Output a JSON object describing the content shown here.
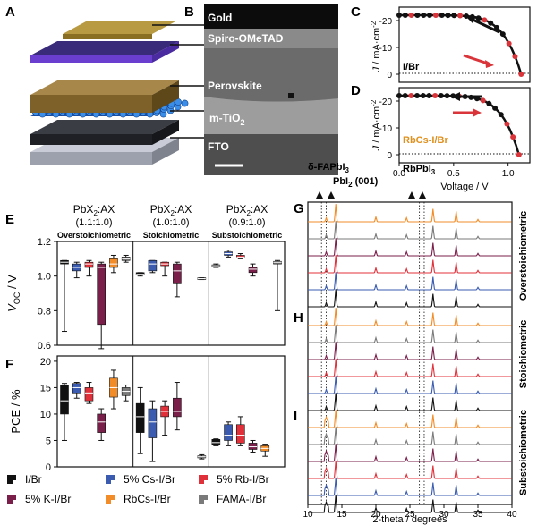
{
  "panels": {
    "A": "A",
    "B": "B",
    "C": "C",
    "D": "D",
    "E": "E",
    "F": "F",
    "G": "G",
    "H": "H",
    "I": "I"
  },
  "layers": [
    "Gold",
    "Spiro-OMeTAD",
    "Perovskite",
    "m-TiO2",
    "FTO"
  ],
  "layer_sub": {
    "base": "m-TiO",
    "sub": "2"
  },
  "colors": {
    "IBr": "#111111",
    "Cs": "#3a5bb0",
    "Rb": "#e0303a",
    "K": "#7a1f4a",
    "RbCs": "#f28c28",
    "FAMA": "#7a7a7a",
    "jv_red": "#d8343a",
    "rbcs_label": "#e0901e"
  },
  "jv": {
    "C_label": "I/Br",
    "D_label": "RbCs-I/Br",
    "ylabel": "J / mA·cm",
    "ylabel_sup": "-2",
    "xlabel": "Voltage / V",
    "yticks": [
      "-20",
      "-10",
      "0"
    ],
    "xticks": [
      "0.0",
      "0.5",
      "1.0"
    ]
  },
  "groups": {
    "ratio_prefix": "PbX",
    "ratio_sub": "2",
    "ratio_suffix": ":AX",
    "names": [
      "Overstoichiometric",
      "Stoichiometric",
      "Substoichiometric"
    ],
    "ratios": [
      "(1.1:1.0)",
      "(1.0:1.0)",
      "(0.9:1.0)"
    ]
  },
  "voc_axis": {
    "label_main": "V",
    "label_sub": "OC",
    "label_unit": " / V",
    "ticks": [
      "1.2",
      "1.0",
      "0.8",
      "0.6"
    ]
  },
  "pce_axis": {
    "label": "PCE / %",
    "ticks": [
      "20",
      "15",
      "10",
      "5",
      "0"
    ]
  },
  "legend": [
    "I/Br",
    "5% Cs-I/Br",
    "5% Rb-I/Br",
    "5% K-I/Br",
    "RbCs-I/Br",
    "FAMA-I/Br"
  ],
  "xrd": {
    "annot1": "δ-FAPbI",
    "annot1_sub": "3",
    "annot2": "PbI",
    "annot2_sub": "2",
    "annot2_tail": " (001)",
    "annot3": "RbPbI",
    "annot3_sub": "3",
    "side_labels": [
      "Overstoichiometric",
      "Stoichiometric",
      "Substoichiometric"
    ],
    "xlabel": "2-theta / degrees",
    "xticks": [
      "10",
      "15",
      "20",
      "25",
      "30",
      "35",
      "40"
    ]
  },
  "chart_data": [
    {
      "type": "box",
      "title": "",
      "ylabel": "VOC / V",
      "ylim": [
        0.6,
        1.2
      ],
      "categories": [
        "Overstoichiometric",
        "Stoichiometric",
        "Substoichiometric"
      ],
      "series": [
        {
          "name": "I/Br",
          "boxes": [
            {
              "min": 0.68,
              "q1": 1.07,
              "med": 1.08,
              "q3": 1.09,
              "max": 1.09
            },
            {
              "min": 1.0,
              "q1": 1.005,
              "med": 1.01,
              "q3": 1.02,
              "max": 1.02
            },
            {
              "min": 1.05,
              "q1": 1.055,
              "med": 1.06,
              "q3": 1.065,
              "max": 1.07
            }
          ]
        },
        {
          "name": "5% Cs-I/Br",
          "boxes": [
            {
              "min": 0.99,
              "q1": 1.03,
              "med": 1.05,
              "q3": 1.07,
              "max": 1.08
            },
            {
              "min": 1.02,
              "q1": 1.03,
              "med": 1.07,
              "q3": 1.09,
              "max": 1.09
            },
            {
              "min": 1.11,
              "q1": 1.12,
              "med": 1.13,
              "q3": 1.14,
              "max": 1.15
            }
          ]
        },
        {
          "name": "5% Rb-I/Br",
          "boxes": [
            {
              "min": 1.0,
              "q1": 1.05,
              "med": 1.07,
              "q3": 1.08,
              "max": 1.09
            },
            {
              "min": 1.0,
              "q1": 1.06,
              "med": 1.07,
              "q3": 1.08,
              "max": 1.08
            },
            {
              "min": 1.1,
              "q1": 1.105,
              "med": 1.11,
              "q3": 1.12,
              "max": 1.13
            }
          ]
        },
        {
          "name": "5% K-I/Br",
          "boxes": [
            {
              "min": 0.58,
              "q1": 0.72,
              "med": 1.05,
              "q3": 1.07,
              "max": 1.08
            },
            {
              "min": 0.88,
              "q1": 0.96,
              "med": 1.03,
              "q3": 1.07,
              "max": 1.08
            },
            {
              "min": 1.0,
              "q1": 1.02,
              "med": 1.04,
              "q3": 1.05,
              "max": 1.07
            }
          ]
        },
        {
          "name": "RbCs-I/Br",
          "boxes": [
            {
              "min": 1.02,
              "q1": 1.05,
              "med": 1.07,
              "q3": 1.1,
              "max": 1.12
            },
            null,
            null
          ]
        },
        {
          "name": "FAMA-I/Br",
          "boxes": [
            {
              "min": 1.08,
              "q1": 1.09,
              "med": 1.1,
              "q3": 1.11,
              "max": 1.12
            },
            {
              "min": 0.98,
              "q1": 0.98,
              "med": 0.985,
              "q3": 0.99,
              "max": 0.99
            },
            {
              "min": 0.8,
              "q1": 1.07,
              "med": 1.08,
              "q3": 1.085,
              "max": 1.09
            }
          ]
        }
      ]
    },
    {
      "type": "box",
      "title": "",
      "ylabel": "PCE / %",
      "ylim": [
        0,
        21
      ],
      "categories": [
        "Overstoichiometric",
        "Stoichiometric",
        "Substoichiometric"
      ],
      "series": [
        {
          "name": "I/Br",
          "boxes": [
            {
              "min": 5,
              "q1": 10,
              "med": 12.5,
              "q3": 15.5,
              "max": 15.8
            },
            {
              "min": 2.5,
              "q1": 6.5,
              "med": 9.5,
              "q3": 12,
              "max": 15
            },
            {
              "min": 4,
              "q1": 4.2,
              "med": 4.6,
              "q3": 5.2,
              "max": 5.3
            }
          ]
        },
        {
          "name": "5% Cs-I/Br",
          "boxes": [
            {
              "min": 13,
              "q1": 14,
              "med": 15,
              "q3": 15.8,
              "max": 16
            },
            {
              "min": 1,
              "q1": 5.5,
              "med": 8.5,
              "q3": 11,
              "max": 12.5
            },
            {
              "min": 4,
              "q1": 5,
              "med": 6,
              "q3": 8,
              "max": 8.5
            }
          ]
        },
        {
          "name": "5% Rb-I/Br",
          "boxes": [
            {
              "min": 12,
              "q1": 12.5,
              "med": 14,
              "q3": 15,
              "max": 16
            },
            {
              "min": 6,
              "q1": 9.5,
              "med": 10.5,
              "q3": 11.5,
              "max": 12.5
            },
            {
              "min": 4,
              "q1": 4.5,
              "med": 6,
              "q3": 8,
              "max": 9.5
            }
          ]
        },
        {
          "name": "5% K-I/Br",
          "boxes": [
            {
              "min": 5,
              "q1": 6.5,
              "med": 8.5,
              "q3": 10,
              "max": 11
            },
            {
              "min": 7,
              "q1": 9.5,
              "med": 10.5,
              "q3": 13,
              "max": 16
            },
            {
              "min": 2.8,
              "q1": 3.3,
              "med": 3.8,
              "q3": 4.5,
              "max": 5
            }
          ]
        },
        {
          "name": "RbCs-I/Br",
          "boxes": [
            {
              "min": 11,
              "q1": 13.2,
              "med": 15,
              "q3": 16.8,
              "max": 18.3
            },
            null,
            {
              "min": 2,
              "q1": 3,
              "med": 3.5,
              "q3": 4,
              "max": 4.3
            }
          ]
        },
        {
          "name": "FAMA-I/Br",
          "boxes": [
            {
              "min": 12.5,
              "q1": 13.5,
              "med": 14.3,
              "q3": 15,
              "max": 15.5
            },
            {
              "min": 1.5,
              "q1": 1.7,
              "med": 1.9,
              "q3": 2.1,
              "max": 2.3
            },
            null
          ]
        }
      ]
    }
  ]
}
